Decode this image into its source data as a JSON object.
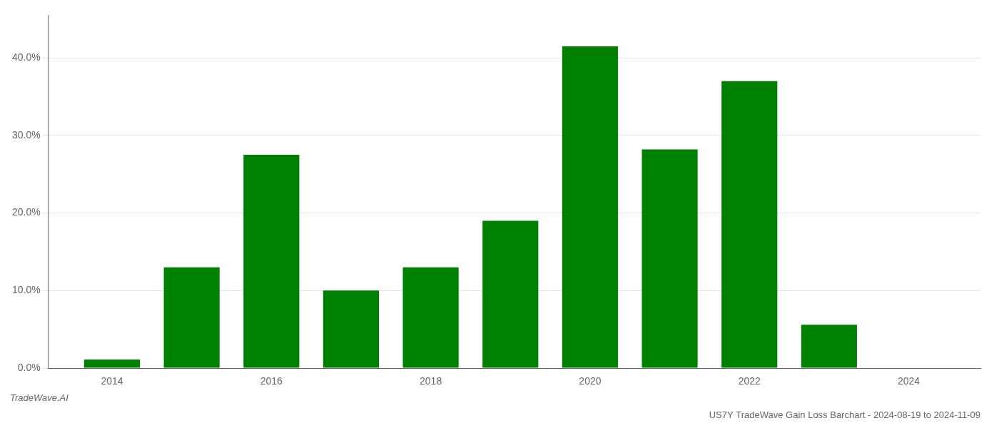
{
  "chart_data": {
    "type": "bar",
    "title": "US7Y TradeWave Gain Loss Barchart - 2024-08-19 to 2024-11-09",
    "annotations": [
      "TradeWave.AI"
    ],
    "x": [
      2014,
      2015,
      2016,
      2017,
      2018,
      2019,
      2020,
      2021,
      2022,
      2023,
      2024
    ],
    "values": [
      0.011,
      0.13,
      0.275,
      0.1,
      0.13,
      0.19,
      0.415,
      0.282,
      0.37,
      0.056,
      0.0
    ],
    "color": "#008000",
    "xlim": [
      2013.2,
      2024.9
    ],
    "xticks": [
      2014,
      2016,
      2018,
      2020,
      2022,
      2024
    ],
    "ylim": [
      0,
      0.455
    ],
    "yticks": [
      {
        "value": 0.0,
        "label": "0.0%"
      },
      {
        "value": 0.1,
        "label": "10.0%"
      },
      {
        "value": 0.2,
        "label": "20.0%"
      },
      {
        "value": 0.3,
        "label": "30.0%"
      },
      {
        "value": 0.4,
        "label": "40.0%"
      }
    ],
    "grid": "y"
  }
}
